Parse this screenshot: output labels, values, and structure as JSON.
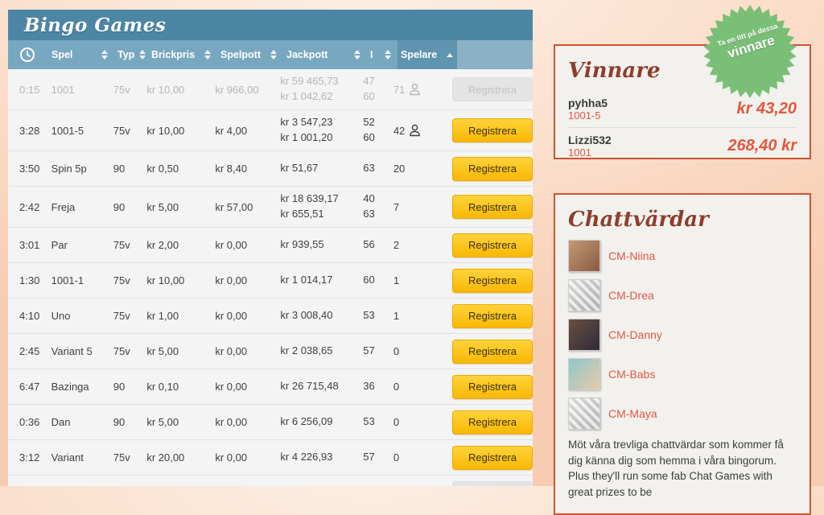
{
  "bingo_table": {
    "title": "Bingo Games",
    "columns": [
      {
        "label": "Spel",
        "sorted": false
      },
      {
        "label": "Typ",
        "sorted": false
      },
      {
        "label": "Brickpris",
        "sorted": false
      },
      {
        "label": "Spelpott",
        "sorted": false
      },
      {
        "label": "Jackpott",
        "sorted": false
      },
      {
        "label": "I",
        "sorted": false
      },
      {
        "label": "Spelare",
        "sorted": "asc"
      }
    ],
    "register_label": "Registrera",
    "rows": [
      {
        "time": "0:15",
        "spel": "1001",
        "typ": "75v",
        "brickpris": "kr 10,00",
        "spelpott": "kr 966,00",
        "jackpott": [
          "kr 59 465,73",
          "kr 1 042,62"
        ],
        "i": [
          "47",
          "60"
        ],
        "spelare": "71",
        "players_icon": true,
        "disabled": true
      },
      {
        "time": "3:28",
        "spel": "1001-5",
        "typ": "75v",
        "brickpris": "kr 10,00",
        "spelpott": "kr 4,00",
        "jackpott": [
          "kr 3 547,23",
          "kr 1 001,20"
        ],
        "i": [
          "52",
          "60"
        ],
        "spelare": "42",
        "players_icon": true,
        "disabled": false
      },
      {
        "time": "3:50",
        "spel": "Spin 5p",
        "typ": "90",
        "brickpris": "kr 0,50",
        "spelpott": "kr 8,40",
        "jackpott": [
          "kr 51,67"
        ],
        "i": [
          "63"
        ],
        "spelare": "20",
        "players_icon": false,
        "disabled": false
      },
      {
        "time": "2:42",
        "spel": "Freja",
        "typ": "90",
        "brickpris": "kr 5,00",
        "spelpott": "kr 57,00",
        "jackpott": [
          "kr 18 639,17",
          "kr 655,51"
        ],
        "i": [
          "40",
          "63"
        ],
        "spelare": "7",
        "players_icon": false,
        "disabled": false
      },
      {
        "time": "3:01",
        "spel": "Par",
        "typ": "75v",
        "brickpris": "kr 2,00",
        "spelpott": "kr 0,00",
        "jackpott": [
          "kr 939,55"
        ],
        "i": [
          "56"
        ],
        "spelare": "2",
        "players_icon": false,
        "disabled": false
      },
      {
        "time": "1:30",
        "spel": "1001-1",
        "typ": "75v",
        "brickpris": "kr 10,00",
        "spelpott": "kr 0,00",
        "jackpott": [
          "kr 1 014,17"
        ],
        "i": [
          "60"
        ],
        "spelare": "1",
        "players_icon": false,
        "disabled": false
      },
      {
        "time": "4:10",
        "spel": "Uno",
        "typ": "75v",
        "brickpris": "kr 1,00",
        "spelpott": "kr 0,00",
        "jackpott": [
          "kr 3 008,40"
        ],
        "i": [
          "53"
        ],
        "spelare": "1",
        "players_icon": false,
        "disabled": false
      },
      {
        "time": "2:45",
        "spel": "Variant 5",
        "typ": "75v",
        "brickpris": "kr 5,00",
        "spelpott": "kr 0,00",
        "jackpott": [
          "kr 2 038,65"
        ],
        "i": [
          "57"
        ],
        "spelare": "0",
        "players_icon": false,
        "disabled": false
      },
      {
        "time": "6:47",
        "spel": "Bazinga",
        "typ": "90",
        "brickpris": "kr 0,10",
        "spelpott": "kr 0,00",
        "jackpott": [
          "kr 26 715,48"
        ],
        "i": [
          "36"
        ],
        "spelare": "0",
        "players_icon": false,
        "disabled": false
      },
      {
        "time": "0:36",
        "spel": "Dan",
        "typ": "90",
        "brickpris": "kr 5,00",
        "spelpott": "kr 0,00",
        "jackpott": [
          "kr 6 256,09"
        ],
        "i": [
          "53"
        ],
        "spelare": "0",
        "players_icon": false,
        "disabled": false
      },
      {
        "time": "3:12",
        "spel": "Variant",
        "typ": "75v",
        "brickpris": "kr 20,00",
        "spelpott": "kr 0,00",
        "jackpott": [
          "kr 4 226,93"
        ],
        "i": [
          "57"
        ],
        "spelare": "0",
        "players_icon": false,
        "disabled": false
      }
    ],
    "partial_last_row": {
      "disabled": true
    }
  },
  "winners_panel": {
    "title": "Vinnare",
    "winners": [
      {
        "name": "pyhha5",
        "game": "1001-5",
        "amount": "kr 43,20"
      },
      {
        "name": "Lizzi532",
        "game": "1001",
        "amount": "268,40 kr"
      }
    ]
  },
  "badge": {
    "line1": "Ta en titt på dessa",
    "line2": "vinnare",
    "color": "#7abf76"
  },
  "hosts_panel": {
    "title": "Chattvärdar",
    "hosts": [
      {
        "name": "CM-Niina",
        "avatar_colors": [
          "#c49a72",
          "#8a5a43"
        ],
        "sketch": false
      },
      {
        "name": "CM-Drea",
        "avatar_colors": [
          "#e8e8e8",
          "#bdbdbd"
        ],
        "sketch": true
      },
      {
        "name": "CM-Danny",
        "avatar_colors": [
          "#6a5040",
          "#2e2a3a"
        ],
        "sketch": false
      },
      {
        "name": "CM-Babs",
        "avatar_colors": [
          "#8cc8cc",
          "#e8c9a8"
        ],
        "sketch": false
      },
      {
        "name": "CM-Maya",
        "avatar_colors": [
          "#ededed",
          "#c2c2c2"
        ],
        "sketch": true
      }
    ],
    "description": "Möt våra trevliga chattvärdar som kommer få dig känna dig som hemma i våra bingorum. Plus they'll run some fab Chat Games with great prizes to be"
  },
  "icons": {
    "header_clock": "clock-icon",
    "players": "person-icon",
    "sort": "sort-arrows-icon"
  },
  "colors": {
    "titlebar_blue": "#4d86a5",
    "header_blue": "#78a7c0",
    "sorted_col_blue": "#6095b0",
    "button_yellow": "#f9b804",
    "panel_border_orange": "#cf5331",
    "accent_orange": "#e2573e",
    "title_brown": "#8e3e2c",
    "badge_green": "#7abf76"
  }
}
